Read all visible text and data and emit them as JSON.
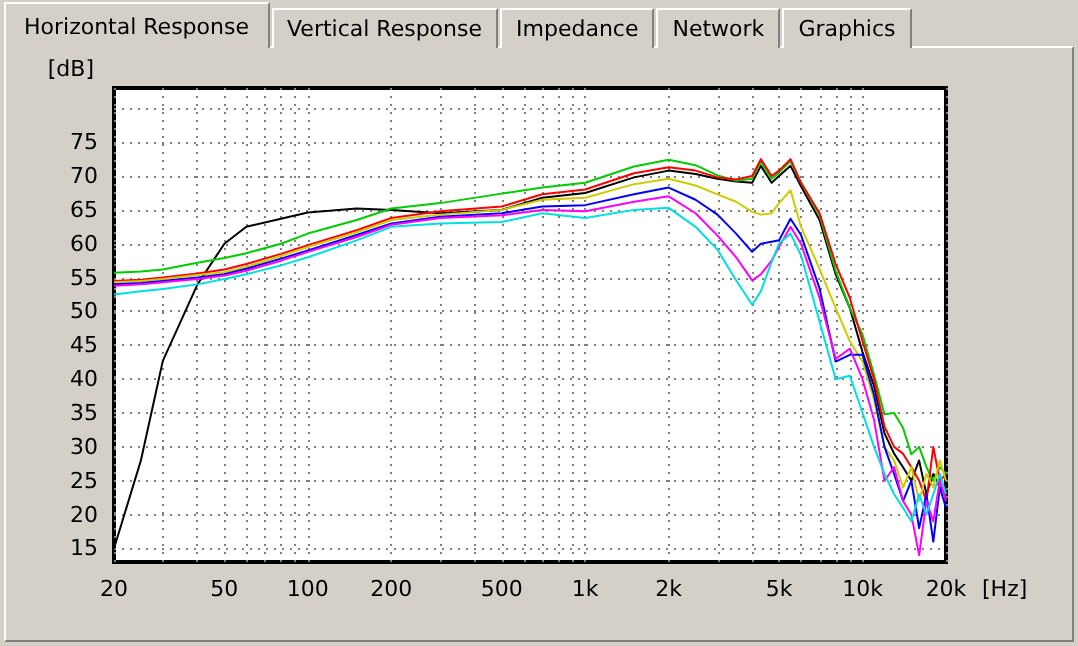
{
  "chart_data": {
    "type": "line",
    "xlabel": "[Hz]",
    "ylabel": "[dB]",
    "annotations": [
      "Horizontal Response",
      "Vertical Response",
      "Impedance",
      "Network",
      "Graphics"
    ],
    "log": "x",
    "grid": true,
    "marker": "none",
    "line_style": "solid",
    "xlim": [
      20,
      20000
    ],
    "ylim": [
      13,
      83
    ],
    "xticks": [
      20,
      {
        "value": 30,
        "label": null
      },
      {
        "value": 40,
        "label": null
      },
      50,
      {
        "value": 60,
        "label": null
      },
      {
        "value": 70,
        "label": null
      },
      {
        "value": 80,
        "label": null
      },
      {
        "value": 90,
        "label": null
      },
      100,
      200,
      {
        "value": 300,
        "label": null
      },
      {
        "value": 400,
        "label": null
      },
      500,
      {
        "value": 600,
        "label": null
      },
      {
        "value": 700,
        "label": null
      },
      {
        "value": 800,
        "label": null
      },
      {
        "value": 900,
        "label": null
      },
      {
        "value": 1000,
        "label": "1k"
      },
      {
        "value": 2000,
        "label": "2k"
      },
      {
        "value": 3000,
        "label": null
      },
      {
        "value": 4000,
        "label": null
      },
      {
        "value": 5000,
        "label": "5k"
      },
      {
        "value": 6000,
        "label": null
      },
      {
        "value": 7000,
        "label": null
      },
      {
        "value": 8000,
        "label": null
      },
      {
        "value": 9000,
        "label": null
      },
      {
        "value": 10000,
        "label": "10k"
      },
      {
        "value": 20000,
        "label": "20k"
      }
    ],
    "yticks": [
      15,
      20,
      25,
      30,
      35,
      40,
      45,
      50,
      55,
      60,
      65,
      70,
      75,
      {
        "value": 80,
        "label": null
      }
    ],
    "x": [
      20,
      25,
      30,
      40,
      50,
      60,
      80,
      100,
      150,
      200,
      300,
      500,
      700,
      1000,
      1500,
      2000,
      2500,
      3000,
      3500,
      4000,
      4300,
      4700,
      5000,
      5500,
      6000,
      7000,
      8000,
      9000,
      10000,
      11000,
      12000,
      13000,
      14000,
      15000,
      16000,
      17000,
      18000,
      19000,
      20000
    ],
    "series": [
      {
        "color": "#000000",
        "values": [
          15,
          28,
          42.7,
          54,
          60,
          62.5,
          63.7,
          64.6,
          65.2,
          65,
          64.5,
          65,
          66.8,
          67.5,
          69.8,
          70.8,
          70.3,
          69.6,
          69.2,
          69,
          71.5,
          69,
          70,
          71.5,
          68.5,
          63.5,
          55.5,
          50.5,
          44,
          39,
          32,
          29,
          27,
          25,
          28,
          23,
          26,
          24,
          23
        ]
      },
      {
        "color": "#00cc00",
        "values": [
          55.7,
          55.9,
          56.2,
          57.2,
          57.9,
          58.6,
          60,
          61.5,
          63.5,
          65.2,
          66,
          67.4,
          68.3,
          69,
          71.4,
          72.4,
          71.6,
          70.1,
          69.3,
          69.6,
          72.1,
          69.6,
          70.5,
          72.2,
          69,
          64.2,
          56,
          50.5,
          46.6,
          40.7,
          34.8,
          35,
          32.8,
          28.9,
          30,
          27,
          25,
          27,
          26
        ]
      },
      {
        "color": "#ff0000",
        "values": [
          54.5,
          54.7,
          55,
          55.6,
          56.2,
          57,
          58.5,
          59.8,
          62,
          63.8,
          64.8,
          65.5,
          67.3,
          68,
          70.4,
          71.3,
          70.8,
          69.8,
          69.5,
          70,
          72.5,
          70,
          70.8,
          72.5,
          69,
          64.5,
          57,
          52,
          45.6,
          40,
          33,
          30,
          29,
          27,
          25,
          22,
          30,
          25,
          26
        ]
      },
      {
        "color": "#cccc00",
        "values": [
          54.3,
          54.5,
          54.8,
          55.4,
          55.8,
          56.6,
          58.2,
          59.5,
          61.7,
          63.5,
          64.3,
          65,
          66.5,
          66.8,
          68.8,
          69.6,
          68.6,
          67.3,
          66.2,
          64.7,
          64.3,
          64.5,
          66,
          67.9,
          62.5,
          56.3,
          50.5,
          45.6,
          42.6,
          37,
          30,
          28,
          24,
          27,
          22,
          26,
          24,
          28,
          25
        ]
      },
      {
        "color": "#0000ff",
        "values": [
          54,
          54.2,
          54.5,
          55,
          55.5,
          56.3,
          57.8,
          59,
          61.3,
          63,
          64,
          64.5,
          65.5,
          65.7,
          67.3,
          68.3,
          66.5,
          64.3,
          61.5,
          58.8,
          60,
          60.3,
          60.5,
          63.7,
          61.3,
          53.4,
          42.6,
          43.6,
          43.6,
          37.7,
          30,
          26,
          22,
          25,
          18,
          23,
          16,
          24,
          21
        ]
      },
      {
        "color": "#ff00ff",
        "values": [
          53.8,
          54,
          54.3,
          54.8,
          55.3,
          56,
          57.5,
          58.8,
          61,
          62.8,
          63.8,
          64.2,
          65,
          64.8,
          66.2,
          67,
          64.5,
          61.2,
          58,
          54.6,
          55.5,
          57.5,
          59.5,
          62.5,
          60,
          52,
          43,
          44.5,
          40,
          34,
          25,
          27,
          22,
          20,
          14,
          22,
          19,
          25,
          22
        ]
      },
      {
        "color": "#00e0e0",
        "values": [
          52.5,
          53,
          53.3,
          54,
          54.8,
          55.5,
          56.8,
          58,
          60.5,
          62.5,
          63,
          63.2,
          64.5,
          63.8,
          65,
          65.3,
          62.5,
          59.1,
          54.6,
          51,
          53,
          57.3,
          60,
          61.5,
          58.3,
          48.5,
          40,
          40.5,
          35,
          30,
          26,
          23,
          21,
          19,
          23,
          20,
          23,
          26,
          23
        ]
      }
    ]
  }
}
